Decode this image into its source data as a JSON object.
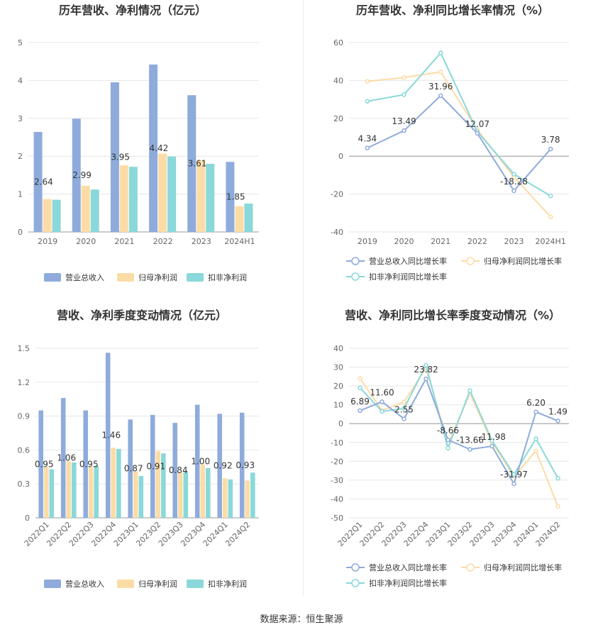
{
  "source": "数据来源：恒生聚源",
  "chart_data": [
    {
      "type": "bar",
      "title": "历年营收、净利情况（亿元）",
      "categories": [
        "2019",
        "2020",
        "2021",
        "2022",
        "2023",
        "2024H1"
      ],
      "series": [
        {
          "name": "营业总收入",
          "color": "#8eabdc",
          "values": [
            2.64,
            2.99,
            3.95,
            4.42,
            3.61,
            1.85
          ]
        },
        {
          "name": "归母净利润",
          "color": "#fcdca6",
          "values": [
            0.87,
            1.22,
            1.76,
            2.07,
            1.89,
            0.68
          ]
        },
        {
          "name": "扣非净利润",
          "color": "#8ad8d9",
          "values": [
            0.85,
            1.12,
            1.72,
            1.99,
            1.8,
            0.75
          ]
        }
      ],
      "data_labels": [
        "2.64",
        "2.99",
        "3.95",
        "4.42",
        "3.61",
        "1.85"
      ],
      "yticks": [
        "0",
        "1",
        "2",
        "3",
        "4",
        "5"
      ],
      "ylim": [
        0,
        5
      ],
      "legend": "bottom"
    },
    {
      "type": "line",
      "title": "历年营收、净利同比增长率情况（%）",
      "categories": [
        "2019",
        "2020",
        "2021",
        "2022",
        "2023",
        "2024H1"
      ],
      "series": [
        {
          "name": "营业总收入同比增长率",
          "color": "#8eabdc",
          "values": [
            4.34,
            13.49,
            31.96,
            12.07,
            -18.28,
            3.78
          ]
        },
        {
          "name": "归母净利润同比增长率",
          "color": "#fcdca6",
          "values": [
            39.5,
            41.5,
            44.5,
            14.0,
            -11.0,
            -32.0
          ]
        },
        {
          "name": "扣非净利润同比增长率",
          "color": "#8ad8d9",
          "values": [
            29.0,
            32.5,
            54.5,
            13.0,
            -9.5,
            -21.0
          ]
        }
      ],
      "data_labels": [
        "4.34",
        "13.49",
        "31.96",
        "12.07",
        "-18.28",
        "3.78"
      ],
      "yticks": [
        "-40",
        "-20",
        "0",
        "20",
        "40",
        "60"
      ],
      "ylim": [
        -40,
        60
      ],
      "legend": "bottom"
    },
    {
      "type": "bar",
      "title": "营收、净利季度变动情况（亿元）",
      "categories": [
        "2022Q1",
        "2022Q2",
        "2022Q3",
        "2022Q4",
        "2023Q1",
        "2023Q2",
        "2023Q3",
        "2023Q4",
        "2024Q1",
        "2024Q2"
      ],
      "series": [
        {
          "name": "营业总收入",
          "color": "#8eabdc",
          "values": [
            0.95,
            1.06,
            0.95,
            1.46,
            0.87,
            0.91,
            0.84,
            1.0,
            0.92,
            0.93
          ]
        },
        {
          "name": "归母净利润",
          "color": "#fcdca6",
          "values": [
            0.45,
            0.5,
            0.45,
            0.62,
            0.41,
            0.59,
            0.4,
            0.47,
            0.35,
            0.33
          ]
        },
        {
          "name": "扣非净利润",
          "color": "#8ad8d9",
          "values": [
            0.43,
            0.49,
            0.46,
            0.61,
            0.37,
            0.57,
            0.41,
            0.44,
            0.34,
            0.4
          ]
        }
      ],
      "data_labels": [
        "0.95",
        "1.06",
        "0.95",
        "1.46",
        "0.87",
        "0.91",
        "0.84",
        "1.00",
        "0.92",
        "0.93"
      ],
      "yticks": [
        "0",
        "0.3",
        "0.6",
        "0.9",
        "1.2",
        "1.5"
      ],
      "ylim": [
        0,
        1.5
      ],
      "legend": "bottom"
    },
    {
      "type": "line",
      "title": "营收、净利同比增长率季度变动情况（%）",
      "categories": [
        "2022Q1",
        "2022Q2",
        "2022Q3",
        "2022Q4",
        "2023Q1",
        "2023Q2",
        "2023Q3",
        "2023Q4",
        "2024Q1",
        "2024Q2"
      ],
      "series": [
        {
          "name": "营业总收入同比增长率",
          "color": "#8eabdc",
          "values": [
            6.89,
            11.6,
            2.55,
            23.82,
            -8.66,
            -13.66,
            -11.98,
            -31.97,
            6.2,
            1.49
          ]
        },
        {
          "name": "归母净利润同比增长率",
          "color": "#fcdca6",
          "values": [
            24.0,
            7.0,
            11.5,
            29.5,
            -10.5,
            16.0,
            -10.0,
            -28.0,
            -14.5,
            -44.0
          ]
        },
        {
          "name": "扣非净利润同比增长率",
          "color": "#8ad8d9",
          "values": [
            19.0,
            6.5,
            8.0,
            31.0,
            -13.0,
            17.5,
            -9.0,
            -27.0,
            -8.0,
            -29.0
          ]
        }
      ],
      "data_labels": [
        "6.89",
        "11.60",
        "2.55",
        "23.82",
        "-8.66",
        "-13.66",
        "-11.98",
        "-31.97",
        "6.20",
        "1.49"
      ],
      "yticks": [
        "-50",
        "-40",
        "-30",
        "-20",
        "-10",
        "0",
        "10",
        "20",
        "30",
        "40"
      ],
      "ylim": [
        -50,
        40
      ],
      "legend": "bottom"
    }
  ]
}
